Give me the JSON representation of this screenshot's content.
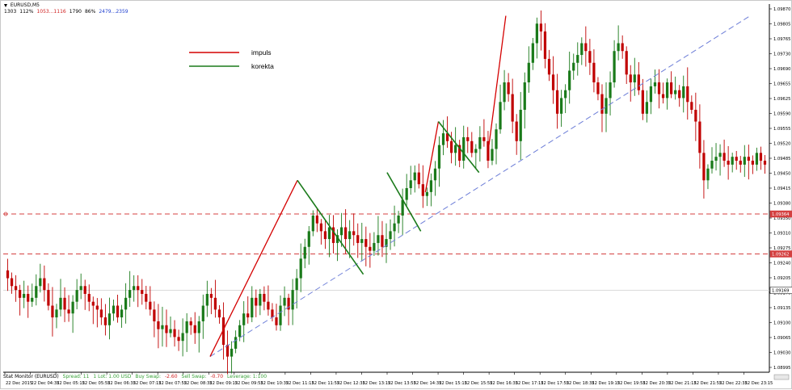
{
  "window": {
    "title": "EURUSD,M5",
    "header_stats": [
      {
        "text": "1303",
        "color": "#000000"
      },
      {
        "text": "112%",
        "color": "#000000"
      },
      {
        "text": "1053...1116",
        "color": "#d02020"
      },
      {
        "text": "1790",
        "color": "#000000"
      },
      {
        "text": "86%",
        "color": "#000000"
      },
      {
        "text": "2479...2359",
        "color": "#2040d0"
      }
    ]
  },
  "legend": [
    {
      "label": "impuls",
      "color": "#d40000"
    },
    {
      "label": "korekta",
      "color": "#1a7a1a"
    }
  ],
  "price_scale": {
    "labels": [
      "1.09870",
      "1.09805",
      "1.09765",
      "1.09730",
      "1.09690",
      "1.09655",
      "1.09625",
      "1.09590",
      "1.09555",
      "1.09520",
      "1.09485",
      "1.09450",
      "1.09415",
      "1.09380",
      "1.09350",
      "1.09310",
      "1.09275",
      "1.09240",
      "1.09205",
      "1.09170",
      "1.09135",
      "1.09100",
      "1.09065",
      "1.09030",
      "1.08995"
    ],
    "marker_1": "1.09364",
    "marker_2": "1.09262",
    "marker_current": "1.09169"
  },
  "time_scale": {
    "labels": [
      "22 Dec 2015",
      "22 Dec 04:35",
      "22 Dec 05:15",
      "22 Dec 05:55",
      "22 Dec 06:35",
      "22 Dec 07:15",
      "22 Dec 07:55",
      "22 Dec 08:35",
      "22 Dec 09:15",
      "22 Dec 09:55",
      "22 Dec 10:35",
      "22 Dec 11:15",
      "22 Dec 11:55",
      "22 Dec 12:35",
      "22 Dec 13:15",
      "22 Dec 13:55",
      "22 Dec 14:35",
      "22 Dec 15:15",
      "22 Dec 15:55",
      "22 Dec 16:35",
      "22 Dec 17:15",
      "22 Dec 17:55",
      "22 Dec 18:35",
      "22 Dec 19:15",
      "22 Dec 19:55",
      "22 Dec 20:35",
      "22 Dec 21:15",
      "22 Dec 21:55",
      "22 Dec 22:35",
      "22 Dec 23:15"
    ]
  },
  "status_bar": {
    "items": [
      {
        "text": "Stat Monitor (EURUSD)",
        "color": "#000000"
      },
      {
        "text": "Spread: 11",
        "color": "#3aa23a"
      },
      {
        "text": "1 Lot: 1.00 USD",
        "color": "#3aa23a"
      },
      {
        "text": "Buy Swap:",
        "color": "#3aa23a"
      },
      {
        "text": "-2.60",
        "color": "#d02020"
      },
      {
        "text": "Sell Swap:",
        "color": "#3aa23a"
      },
      {
        "text": "-0.70",
        "color": "#d02020"
      },
      {
        "text": "Leverage: 1:100",
        "color": "#3aa23a"
      }
    ]
  },
  "colors": {
    "bull": "#1a7a1a",
    "bear": "#c00000",
    "impuls": "#d40000",
    "korekta": "#1a7a1a",
    "trend": "#6e7fd8",
    "hline": "#d44040",
    "grid": "#d8d8d8"
  },
  "chart_data": {
    "type": "candlestick",
    "symbol": "EURUSD",
    "timeframe": "M5",
    "ylim": [
      1.0896,
      1.099
    ],
    "price_path": [
      1.092,
      1.0918,
      1.0917,
      1.0915,
      1.0916,
      1.0914,
      1.0915,
      1.0918,
      1.092,
      1.0917,
      1.0913,
      1.091,
      1.0912,
      1.0915,
      1.0912,
      1.0911,
      1.0914,
      1.0917,
      1.0918,
      1.0916,
      1.0914,
      1.0913,
      1.0912,
      1.091,
      1.0908,
      1.0911,
      1.0913,
      1.091,
      1.0912,
      1.0915,
      1.0917,
      1.0918,
      1.0917,
      1.0916,
      1.0914,
      1.0912,
      1.0909,
      1.0907,
      1.0908,
      1.0906,
      1.0907,
      1.0905,
      1.0904,
      1.0906,
      1.0909,
      1.0908,
      1.0906,
      1.0909,
      1.0913,
      1.0916,
      1.0915,
      1.0912,
      1.091,
      1.0903,
      1.09,
      1.0902,
      1.0905,
      1.0908,
      1.0911,
      1.091,
      1.0915,
      1.0913,
      1.0916,
      1.0914,
      1.0912,
      1.091,
      1.0908,
      1.0913,
      1.0915,
      1.0912,
      1.0917,
      1.092,
      1.0925,
      1.0928,
      1.0932,
      1.0936,
      1.0934,
      1.0932,
      1.093,
      1.0933,
      1.0929,
      1.0931,
      1.0933,
      1.093,
      1.0932,
      1.0931,
      1.0929,
      1.093,
      1.0928,
      1.0927,
      1.0929,
      1.0931,
      1.0928,
      1.093,
      1.0932,
      1.0934,
      1.0936,
      1.094,
      1.0943,
      1.0945,
      1.0947,
      1.0944,
      1.0941,
      1.0942,
      1.0945,
      1.0948,
      1.0954,
      1.0957,
      1.0955,
      1.0952,
      1.0954,
      1.095,
      1.0956,
      1.0955,
      1.0952,
      1.0953,
      1.0956,
      1.0955,
      1.095,
      1.0953,
      1.0958,
      1.0965,
      1.097,
      1.0967,
      1.096,
      1.0955,
      1.0963,
      1.097,
      1.0975,
      1.098,
      1.0985,
      1.0983,
      1.0976,
      1.0972,
      1.0968,
      1.0962,
      1.0966,
      1.0968,
      1.0973,
      1.0975,
      1.0977,
      1.098,
      1.0978,
      1.0975,
      1.097,
      1.0967,
      1.0962,
      1.0966,
      1.097,
      1.0978,
      1.098,
      1.0978,
      1.0972,
      1.097,
      1.0972,
      1.0968,
      1.0962,
      1.0965,
      1.0969,
      1.097,
      1.0967,
      1.0966,
      1.097,
      1.0967,
      1.0968,
      1.0966,
      1.0969,
      1.0965,
      1.0963,
      1.096,
      1.0952,
      1.0945,
      1.0948,
      1.095,
      1.0951,
      1.0952,
      1.095,
      1.0949,
      1.0951,
      1.095,
      1.0949,
      1.0951,
      1.095,
      1.0949,
      1.0952,
      1.095,
      1.0949
    ],
    "impuls_segments": [
      [
        [
          0.27,
          1.09
        ],
        [
          0.384,
          1.0945
        ]
      ],
      [
        [
          0.551,
          1.0942
        ],
        [
          0.568,
          1.096
        ]
      ],
      [
        [
          0.634,
          1.0954
        ],
        [
          0.656,
          1.0987
        ]
      ]
    ],
    "korekta_segments": [
      [
        [
          0.384,
          1.0945
        ],
        [
          0.47,
          1.0921
        ]
      ],
      [
        [
          0.501,
          1.0947
        ],
        [
          0.545,
          1.0932
        ]
      ],
      [
        [
          0.568,
          1.096
        ],
        [
          0.621,
          1.0947
        ]
      ]
    ],
    "trendline": [
      [
        0.27,
        1.09
      ],
      [
        0.975,
        1.0987
      ]
    ],
    "horizontal_levels": [
      1.09364,
      1.09262
    ]
  }
}
